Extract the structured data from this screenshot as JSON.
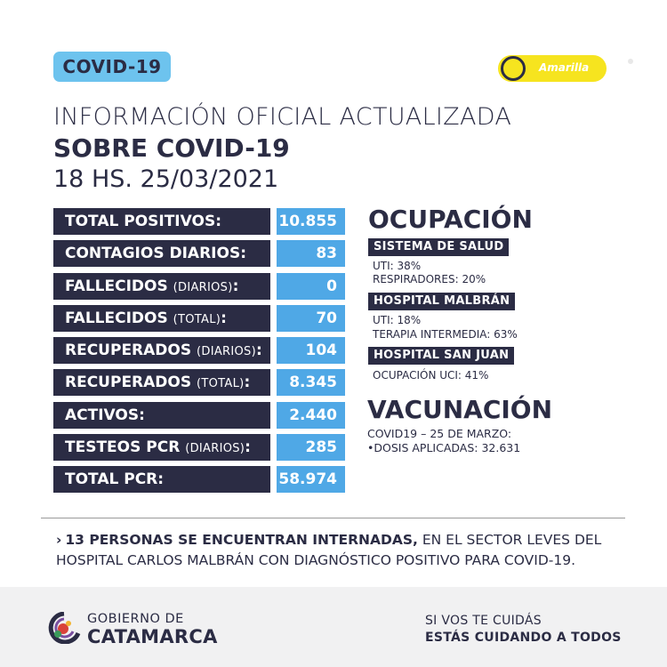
{
  "header": {
    "tag": "COVID-19",
    "alert_level": "Amarilla",
    "alert_color": "#f6e41f",
    "title_line1": "INFORMACIÓN OFICIAL ACTUALIZADA",
    "title_line2": "SOBRE COVID-19",
    "title_line3": "18 HS. 25/03/2021"
  },
  "stats": [
    {
      "label": "TOTAL POSITIVOS",
      "sub": "",
      "value": "10.855"
    },
    {
      "label": "CONTAGIOS DIARIOS",
      "sub": "",
      "value": "83"
    },
    {
      "label": "FALLECIDOS",
      "sub": "(DIARIOS)",
      "value": "0"
    },
    {
      "label": "FALLECIDOS",
      "sub": "(TOTAL)",
      "value": "70"
    },
    {
      "label": "RECUPERADOS",
      "sub": "(DIARIOS)",
      "value": "104"
    },
    {
      "label": "RECUPERADOS",
      "sub": "(TOTAL)",
      "value": "8.345"
    },
    {
      "label": "ACTIVOS",
      "sub": "",
      "value": "2.440"
    },
    {
      "label": "TESTEOS PCR",
      "sub": "(DIARIOS)",
      "value": "285"
    },
    {
      "label": "TOTAL PCR",
      "sub": "",
      "value": "58.974"
    }
  ],
  "ocupacion": {
    "title": "OCUPACIÓN",
    "sistema": {
      "head": "SISTEMA DE SALUD",
      "line1": "UTI: 38%",
      "line2": "RESPIRADORES: 20%"
    },
    "malbran": {
      "head": "HOSPITAL MALBRÁN",
      "line1": "UTI: 18%",
      "line2": "TERAPIA INTERMEDIA: 63%"
    },
    "sanjuan": {
      "head": "HOSPITAL SAN JUAN",
      "line1": "OCUPACIÓN UCI: 41%"
    }
  },
  "vacunacion": {
    "title": "VACUNACIÓN",
    "line1": "COVID19 – 25 DE MARZO:",
    "line2": "•DOSIS APLICADAS: 32.631"
  },
  "note": {
    "arrow": "›",
    "bold": "13 PERSONAS SE ENCUENTRAN INTERNADAS,",
    "rest": " EN EL SECTOR LEVES DEL HOSPITAL CARLOS MALBRÁN CON DIAGNÓSTICO POSITIVO PARA COVID-19."
  },
  "footer": {
    "gob": "GOBIERNO DE",
    "cat": "CATAMARCA",
    "slogan1": "SI VOS TE CUIDÁS",
    "slogan2": "ESTÁS CUIDANDO A TODOS"
  },
  "colors": {
    "dark": "#2b2c44",
    "blue": "#4fa8e6",
    "light_blue": "#6dc3ee"
  }
}
